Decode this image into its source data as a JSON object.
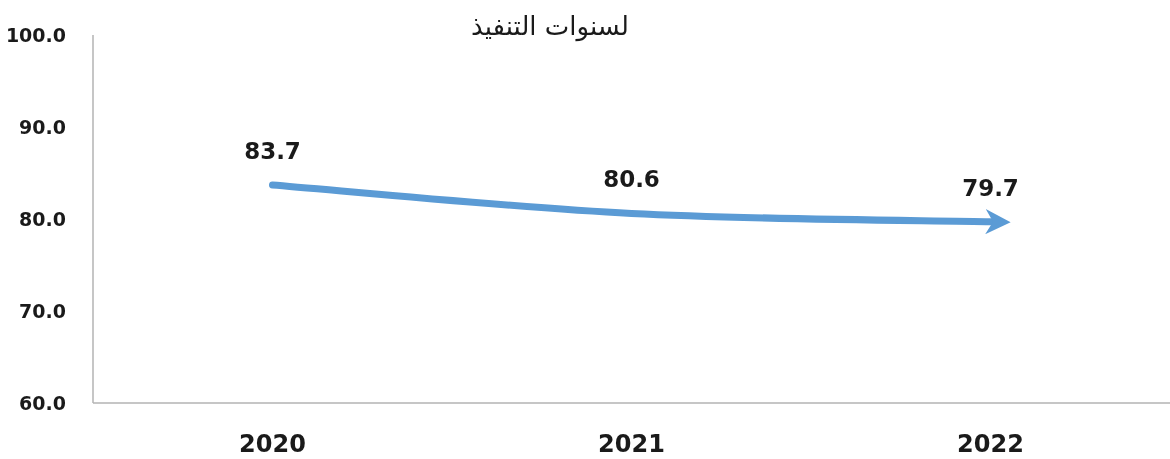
{
  "chart_data": {
    "type": "line",
    "title": "لسنوات التنفيذ",
    "categories": [
      "2020",
      "2021",
      "2022"
    ],
    "series": [
      {
        "color": "#5b9bd5",
        "values": [
          83.7,
          80.6,
          79.7
        ]
      }
    ],
    "ylim": [
      60,
      100
    ],
    "yticks": [
      {
        "value": 60,
        "label": "60.0"
      },
      {
        "value": 70,
        "label": "70.0"
      },
      {
        "value": 80,
        "label": "80.0"
      },
      {
        "value": 90,
        "label": "90.0"
      },
      {
        "value": 100,
        "label": "100.0"
      }
    ],
    "data_labels": true,
    "grid": false,
    "marker": "none",
    "line_style": "solid"
  }
}
